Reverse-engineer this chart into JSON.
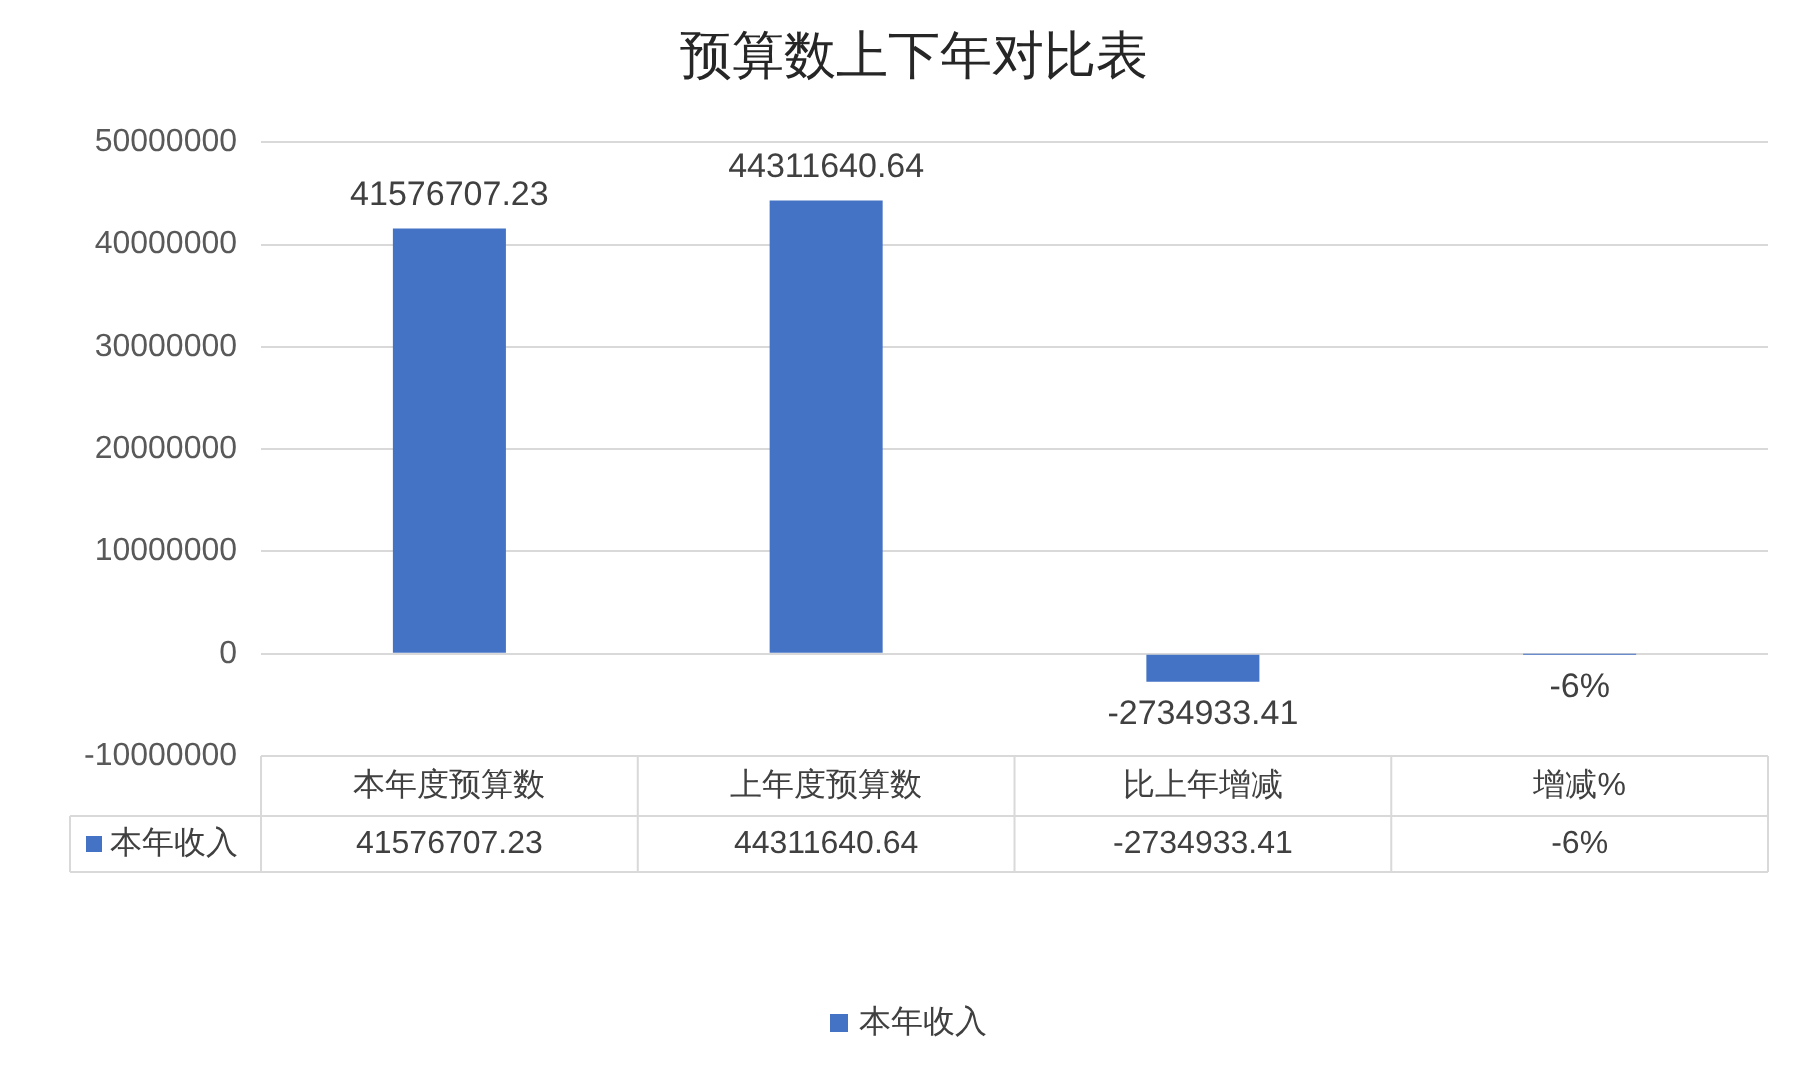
{
  "chart_data": {
    "type": "bar",
    "title": "预算数上下年对比表",
    "categories": [
      "本年度预算数",
      "上年度预算数",
      "比上年增减",
      "增减%"
    ],
    "series": [
      {
        "name": "本年收入",
        "color": "#4472c4",
        "values": [
          41576707.23,
          44311640.64,
          -2734933.41,
          -6
        ],
        "value_labels": [
          "41576707.23",
          "44311640.64",
          "-2734933.41",
          "-6%"
        ]
      }
    ],
    "ylim": [
      -10000000,
      50000000
    ],
    "yticks": [
      -10000000,
      0,
      10000000,
      20000000,
      30000000,
      40000000,
      50000000
    ],
    "grid": "y",
    "legend": "bottom"
  }
}
